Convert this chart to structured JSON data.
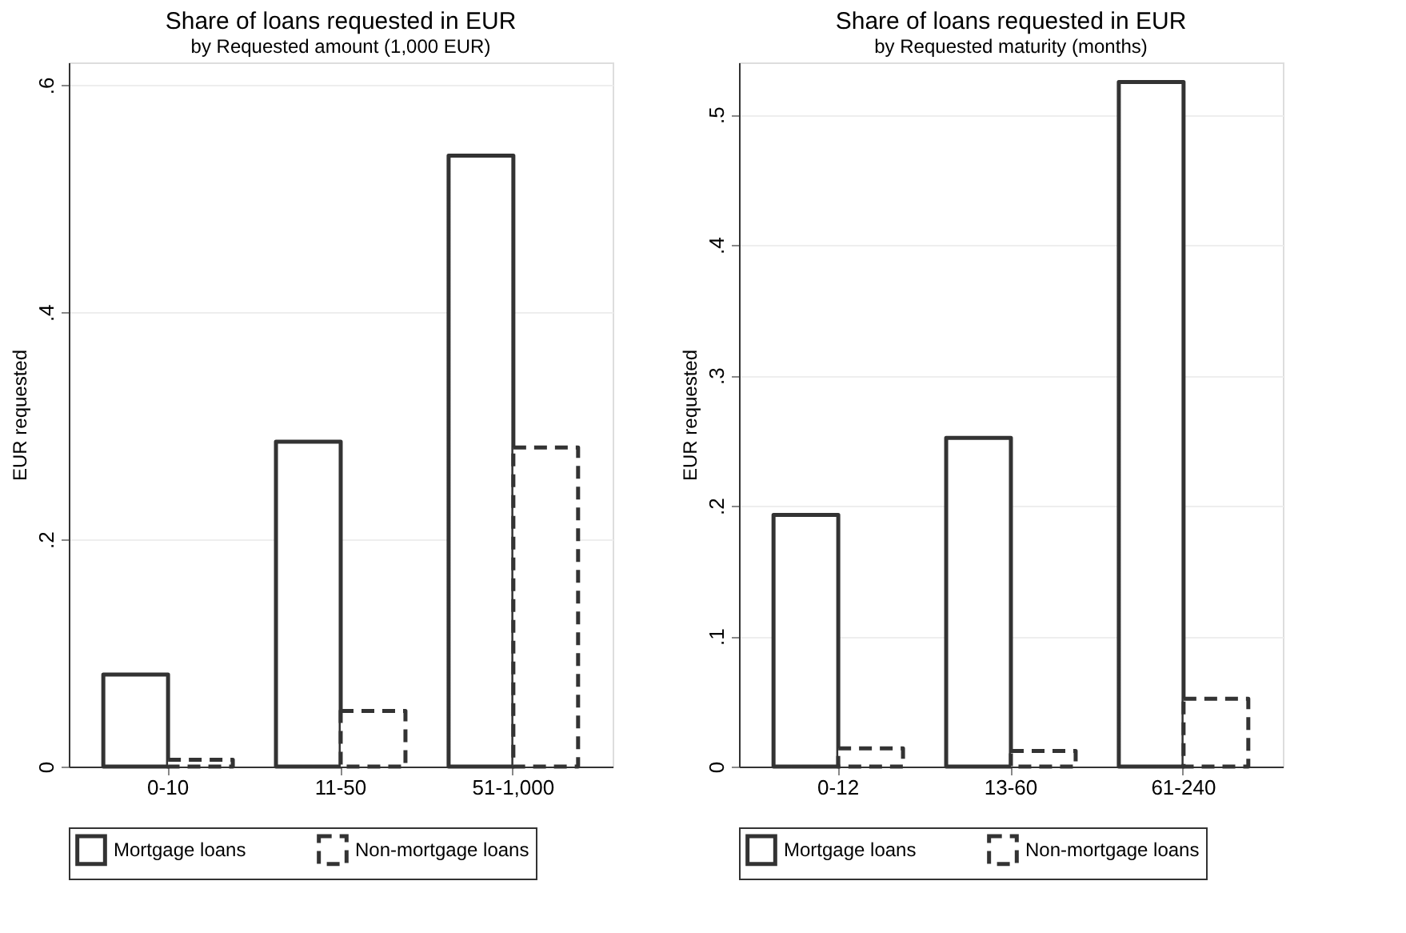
{
  "chart_data": [
    {
      "type": "bar",
      "title": "Share of loans requested in EUR",
      "subtitle": "by Requested amount (1,000 EUR)",
      "ylabel": "EUR requested",
      "categories": [
        "0-10",
        "11-50",
        "51-1,000"
      ],
      "series": [
        {
          "name": "Mortgage loans",
          "color": "#333333",
          "line_style": "solid",
          "values": [
            0.081,
            0.286,
            0.538
          ]
        },
        {
          "name": "Non-mortgage loans",
          "color": "#333333",
          "line_style": "dashed",
          "values": [
            0.006,
            0.049,
            0.281
          ]
        }
      ],
      "ylim": [
        0,
        0.62
      ],
      "yticks": [
        {
          "value": 0,
          "label": "0"
        },
        {
          "value": 0.2,
          "label": ".2"
        },
        {
          "value": 0.4,
          "label": ".4"
        },
        {
          "value": 0.6,
          "label": ".6"
        }
      ],
      "grid": "y",
      "legend": "bottom"
    },
    {
      "type": "bar",
      "title": "Share of loans requested in EUR",
      "subtitle": "by Requested maturity (months)",
      "ylabel": "EUR requested",
      "categories": [
        "0-12",
        "13-60",
        "61-240"
      ],
      "series": [
        {
          "name": "Mortgage loans",
          "color": "#333333",
          "line_style": "solid",
          "values": [
            0.193,
            0.252,
            0.525
          ]
        },
        {
          "name": "Non-mortgage loans",
          "color": "#333333",
          "line_style": "dashed",
          "values": [
            0.014,
            0.012,
            0.052
          ]
        }
      ],
      "ylim": [
        0,
        0.54
      ],
      "yticks": [
        {
          "value": 0,
          "label": "0"
        },
        {
          "value": 0.1,
          "label": ".1"
        },
        {
          "value": 0.2,
          "label": ".2"
        },
        {
          "value": 0.3,
          "label": ".3"
        },
        {
          "value": 0.4,
          "label": ".4"
        },
        {
          "value": 0.5,
          "label": ".5"
        }
      ],
      "grid": "y",
      "legend": "bottom"
    }
  ]
}
